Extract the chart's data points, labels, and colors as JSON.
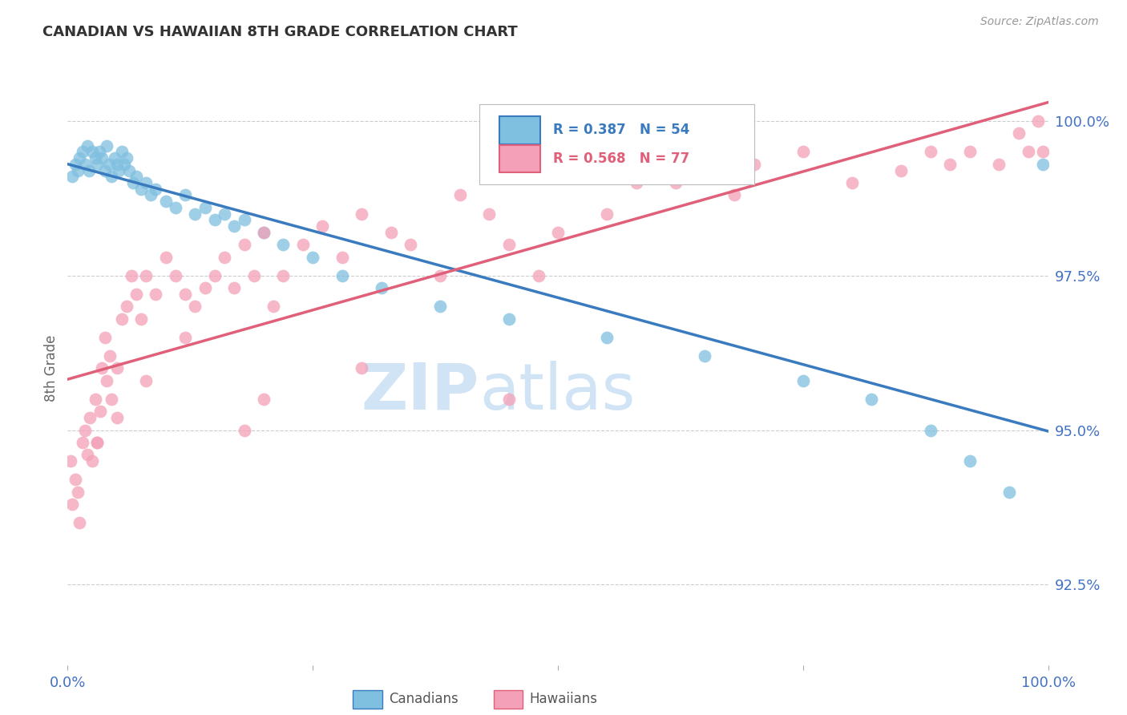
{
  "title": "CANADIAN VS HAWAIIAN 8TH GRADE CORRELATION CHART",
  "source": "Source: ZipAtlas.com",
  "ylabel": "8th Grade",
  "ylabel_right_ticks": [
    92.5,
    95.0,
    97.5,
    100.0
  ],
  "ylabel_right_labels": [
    "92.5%",
    "95.0%",
    "97.5%",
    "100.0%"
  ],
  "xmin": 0.0,
  "xmax": 100.0,
  "ymin": 91.2,
  "ymax": 100.8,
  "blue_R": 0.387,
  "blue_N": 54,
  "pink_R": 0.568,
  "pink_N": 77,
  "blue_color": "#7fbfdf",
  "pink_color": "#f4a0b8",
  "blue_line_color": "#3a7bbf",
  "pink_line_color": "#e0607a",
  "watermark_zip": "ZIP",
  "watermark_atlas": "atlas",
  "watermark_color": "#d0e4f5",
  "legend_label_blue": "Canadians",
  "legend_label_pink": "Hawaiians",
  "canadians_x": [
    0.5,
    0.8,
    1.0,
    1.2,
    1.5,
    1.8,
    2.0,
    2.2,
    2.5,
    2.8,
    3.0,
    3.2,
    3.5,
    3.8,
    4.0,
    4.2,
    4.5,
    4.8,
    5.0,
    5.2,
    5.5,
    5.8,
    6.0,
    6.3,
    6.7,
    7.0,
    7.5,
    8.0,
    8.5,
    9.0,
    10.0,
    11.0,
    12.0,
    13.0,
    14.0,
    15.0,
    16.0,
    17.0,
    18.0,
    20.0,
    22.0,
    25.0,
    28.0,
    32.0,
    38.0,
    45.0,
    55.0,
    65.0,
    75.0,
    82.0,
    88.0,
    92.0,
    96.0,
    99.5
  ],
  "canadians_y": [
    99.1,
    99.3,
    99.2,
    99.4,
    99.5,
    99.3,
    99.6,
    99.2,
    99.5,
    99.4,
    99.3,
    99.5,
    99.4,
    99.2,
    99.6,
    99.3,
    99.1,
    99.4,
    99.3,
    99.2,
    99.5,
    99.3,
    99.4,
    99.2,
    99.0,
    99.1,
    98.9,
    99.0,
    98.8,
    98.9,
    98.7,
    98.6,
    98.8,
    98.5,
    98.6,
    98.4,
    98.5,
    98.3,
    98.4,
    98.2,
    98.0,
    97.8,
    97.5,
    97.3,
    97.0,
    96.8,
    96.5,
    96.2,
    95.8,
    95.5,
    95.0,
    94.5,
    94.0,
    99.3
  ],
  "hawaiians_x": [
    0.3,
    0.5,
    0.8,
    1.0,
    1.2,
    1.5,
    1.8,
    2.0,
    2.3,
    2.5,
    2.8,
    3.0,
    3.3,
    3.5,
    3.8,
    4.0,
    4.3,
    4.5,
    5.0,
    5.5,
    6.0,
    6.5,
    7.0,
    7.5,
    8.0,
    9.0,
    10.0,
    11.0,
    12.0,
    13.0,
    14.0,
    15.0,
    16.0,
    17.0,
    18.0,
    19.0,
    20.0,
    21.0,
    22.0,
    24.0,
    26.0,
    28.0,
    30.0,
    33.0,
    35.0,
    38.0,
    40.0,
    43.0,
    45.0,
    48.0,
    50.0,
    55.0,
    58.0,
    60.0,
    62.0,
    65.0,
    68.0,
    70.0,
    75.0,
    80.0,
    85.0,
    88.0,
    90.0,
    92.0,
    95.0,
    97.0,
    98.0,
    99.0,
    99.5,
    45.0,
    30.0,
    20.0,
    18.0,
    12.0,
    8.0,
    5.0,
    3.0
  ],
  "hawaiians_y": [
    94.5,
    93.8,
    94.2,
    94.0,
    93.5,
    94.8,
    95.0,
    94.6,
    95.2,
    94.5,
    95.5,
    94.8,
    95.3,
    96.0,
    96.5,
    95.8,
    96.2,
    95.5,
    96.0,
    96.8,
    97.0,
    97.5,
    97.2,
    96.8,
    97.5,
    97.2,
    97.8,
    97.5,
    97.2,
    97.0,
    97.3,
    97.5,
    97.8,
    97.3,
    98.0,
    97.5,
    98.2,
    97.0,
    97.5,
    98.0,
    98.3,
    97.8,
    98.5,
    98.2,
    98.0,
    97.5,
    98.8,
    98.5,
    98.0,
    97.5,
    98.2,
    98.5,
    99.0,
    99.2,
    99.0,
    99.5,
    98.8,
    99.3,
    99.5,
    99.0,
    99.2,
    99.5,
    99.3,
    99.5,
    99.3,
    99.8,
    99.5,
    100.0,
    99.5,
    95.5,
    96.0,
    95.5,
    95.0,
    96.5,
    95.8,
    95.2,
    94.8
  ]
}
